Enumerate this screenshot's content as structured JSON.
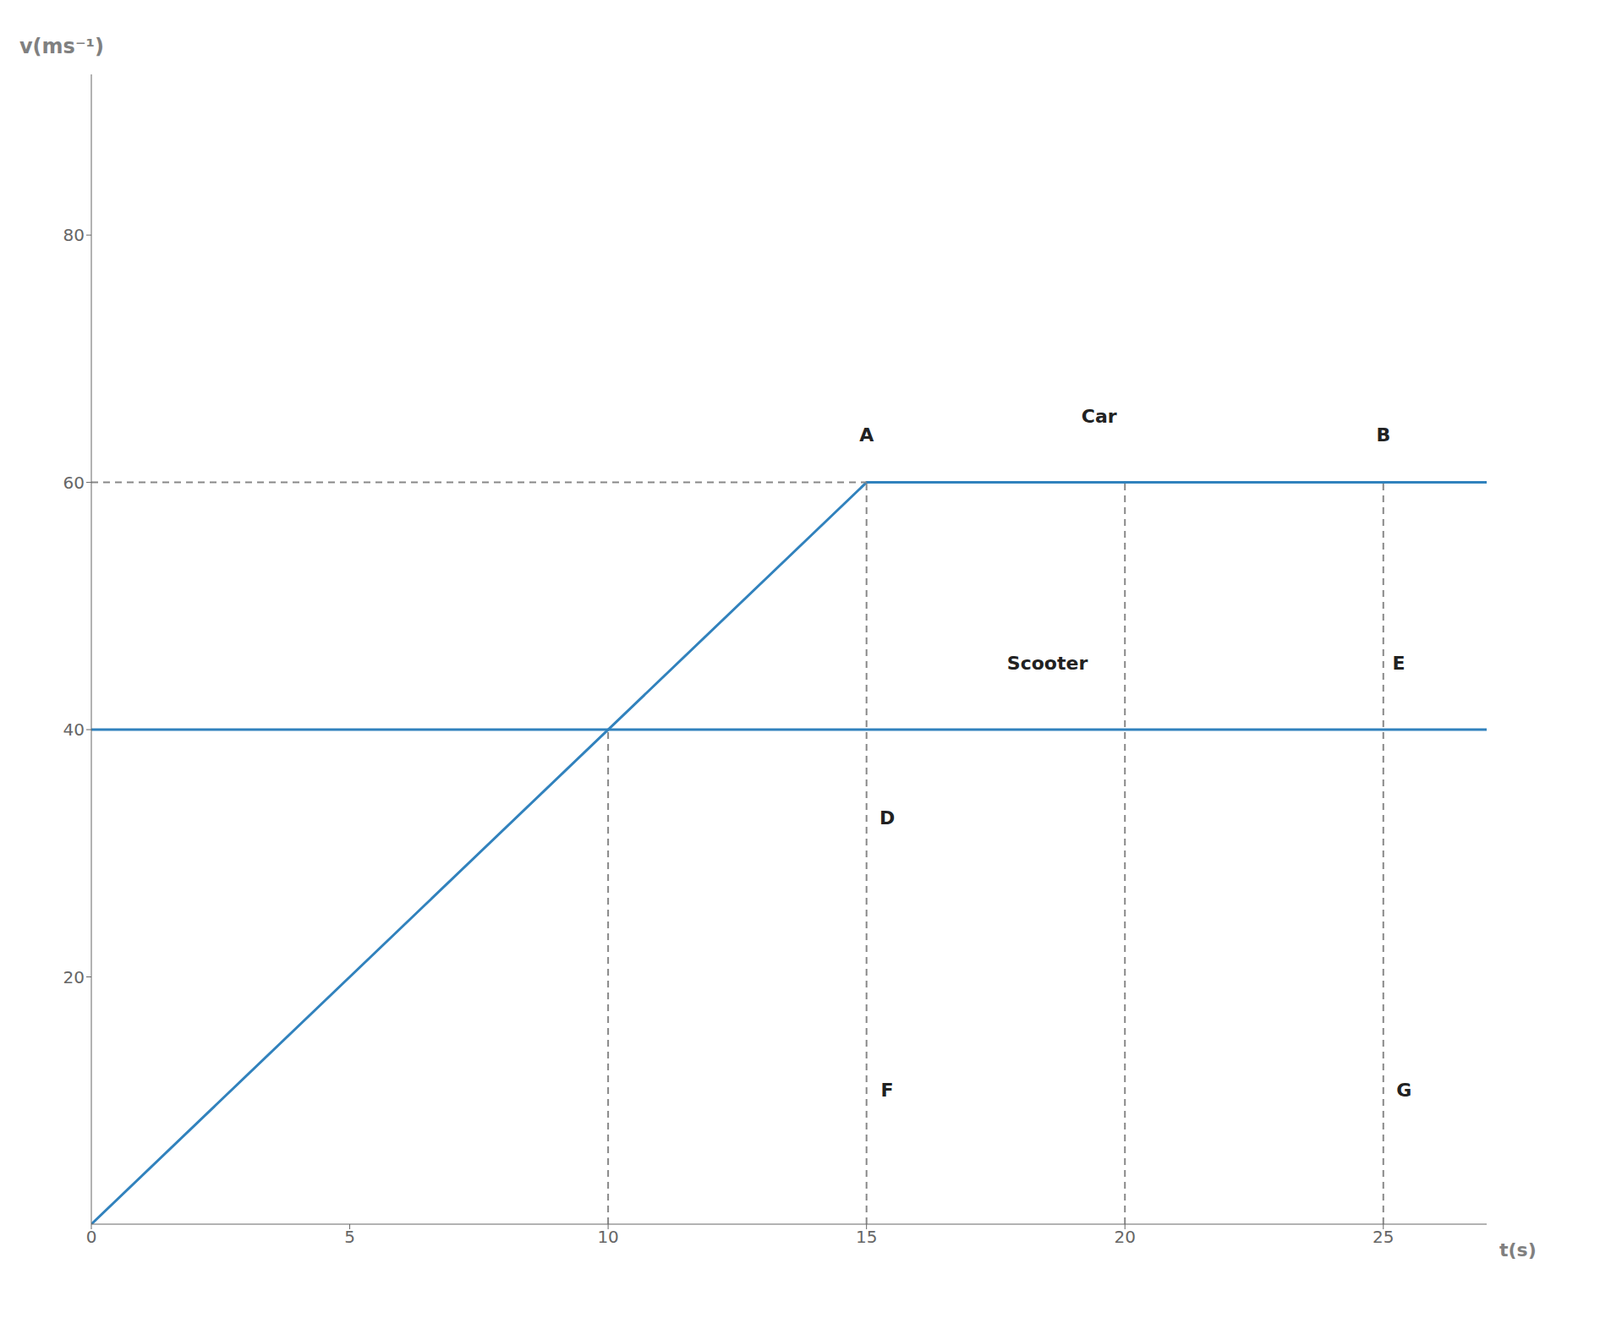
{
  "chart_data": {
    "type": "line",
    "xlabel": "t(s)",
    "ylabel": "v(ms⁻¹)",
    "xlim": [
      0,
      27
    ],
    "ylim": [
      0,
      93
    ],
    "xticks": [
      0,
      5,
      10,
      15,
      20,
      25
    ],
    "yticks": [
      20,
      40,
      60,
      80
    ],
    "grid": false,
    "series": [
      {
        "x": [
          0,
          15,
          27
        ],
        "values": [
          0,
          60,
          60
        ],
        "line_style": "solid"
      },
      {
        "x": [
          0,
          27
        ],
        "values": [
          40,
          40
        ],
        "line_style": "solid"
      },
      {
        "x": [
          0,
          15
        ],
        "values": [
          60,
          60
        ],
        "line_style": "dashed"
      },
      {
        "x": [
          10,
          10
        ],
        "values": [
          0,
          40
        ],
        "line_style": "dashed"
      },
      {
        "x": [
          15,
          15
        ],
        "values": [
          0,
          60
        ],
        "line_style": "dashed"
      },
      {
        "x": [
          20,
          20
        ],
        "values": [
          0,
          60
        ],
        "line_style": "dashed"
      },
      {
        "x": [
          25,
          25
        ],
        "values": [
          0,
          60
        ],
        "line_style": "dashed"
      }
    ],
    "annotations": [
      {
        "text": "A",
        "x": 15.0,
        "y": 63.0
      },
      {
        "text": "B",
        "x": 25.0,
        "y": 63.0
      },
      {
        "text": "Car",
        "x": 19.5,
        "y": 64.5
      },
      {
        "text": "Scooter",
        "x": 18.5,
        "y": 44.5
      },
      {
        "text": "E",
        "x": 25.3,
        "y": 44.5
      },
      {
        "text": "D",
        "x": 15.4,
        "y": 32
      },
      {
        "text": "F",
        "x": 15.4,
        "y": 10
      },
      {
        "text": "G",
        "x": 25.4,
        "y": 10
      }
    ]
  }
}
